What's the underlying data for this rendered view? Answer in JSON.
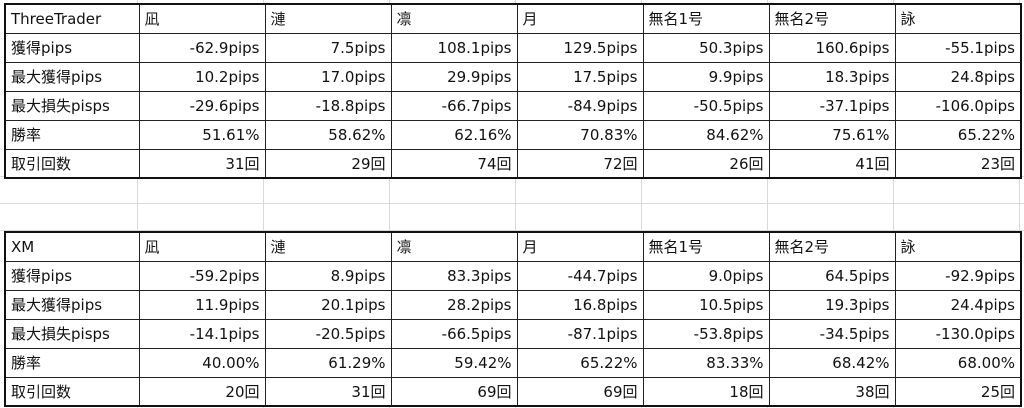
{
  "tables": [
    {
      "broker": "ThreeTrader",
      "columns": [
        "凪",
        "漣",
        "凛",
        "月",
        "無名1号",
        "無名2号",
        "詠"
      ],
      "rows": [
        {
          "label": "獲得pips",
          "values": [
            "-62.9pips",
            "7.5pips",
            "108.1pips",
            "129.5pips",
            "50.3pips",
            "160.6pips",
            "-55.1pips"
          ]
        },
        {
          "label": "最大獲得pips",
          "values": [
            "10.2pips",
            "17.0pips",
            "29.9pips",
            "17.5pips",
            "9.9pips",
            "18.3pips",
            "24.8pips"
          ]
        },
        {
          "label": "最大損失pisps",
          "values": [
            "-29.6pips",
            "-18.8pips",
            "-66.7pips",
            "-84.9pips",
            "-50.5pips",
            "-37.1pips",
            "-106.0pips"
          ]
        },
        {
          "label": "勝率",
          "values": [
            "51.61%",
            "58.62%",
            "62.16%",
            "70.83%",
            "84.62%",
            "75.61%",
            "65.22%"
          ]
        },
        {
          "label": "取引回数",
          "values": [
            "31回",
            "29回",
            "74回",
            "72回",
            "26回",
            "41回",
            "23回"
          ]
        }
      ]
    },
    {
      "broker": "XM",
      "columns": [
        "凪",
        "漣",
        "凛",
        "月",
        "無名1号",
        "無名2号",
        "詠"
      ],
      "rows": [
        {
          "label": "獲得pips",
          "values": [
            "-59.2pips",
            "8.9pips",
            "83.3pips",
            "-44.7pips",
            "9.0pips",
            "64.5pips",
            "-92.9pips"
          ]
        },
        {
          "label": "最大獲得pips",
          "values": [
            "11.9pips",
            "20.1pips",
            "28.2pips",
            "16.8pips",
            "10.5pips",
            "19.3pips",
            "24.4pips"
          ]
        },
        {
          "label": "最大損失pisps",
          "values": [
            "-14.1pips",
            "-20.5pips",
            "-66.5pips",
            "-87.1pips",
            "-53.8pips",
            "-34.5pips",
            "-130.0pips"
          ]
        },
        {
          "label": "勝率",
          "values": [
            "40.00%",
            "61.29%",
            "59.42%",
            "65.22%",
            "83.33%",
            "68.42%",
            "68.00%"
          ]
        },
        {
          "label": "取引回数",
          "values": [
            "20回",
            "31回",
            "69回",
            "69回",
            "18回",
            "38回",
            "25回"
          ]
        }
      ]
    }
  ]
}
